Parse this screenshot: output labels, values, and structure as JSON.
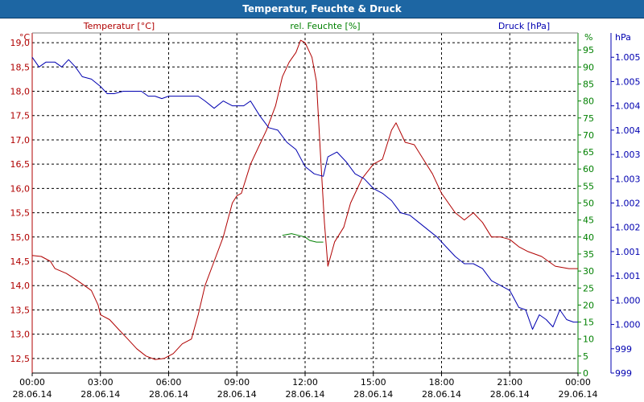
{
  "window": {
    "title": "Temperatur, Feuchte & Druck"
  },
  "colors": {
    "temperature": "#b00000",
    "humidity": "#008000",
    "pressure": "#0000b0",
    "grid": "#000000",
    "title_bar": "#1d66a3"
  },
  "chart_data": {
    "type": "line",
    "title": "Temperatur, Feuchte & Druck",
    "grid": true,
    "x": {
      "ticks": [
        {
          "hour": 0,
          "time": "00:00",
          "date": "28.06.14"
        },
        {
          "hour": 3,
          "time": "03:00",
          "date": "28.06.14"
        },
        {
          "hour": 6,
          "time": "06:00",
          "date": "28.06.14"
        },
        {
          "hour": 9,
          "time": "09:00",
          "date": "28.06.14"
        },
        {
          "hour": 12,
          "time": "12:00",
          "date": "28.06.14"
        },
        {
          "hour": 15,
          "time": "15:00",
          "date": "28.06.14"
        },
        {
          "hour": 18,
          "time": "18:00",
          "date": "28.06.14"
        },
        {
          "hour": 21,
          "time": "21:00",
          "date": "28.06.14"
        },
        {
          "hour": 24,
          "time": "00:00",
          "date": "29.06.14"
        }
      ],
      "range": [
        0,
        24
      ]
    },
    "axes": {
      "left": {
        "label": "Temperatur [°C]",
        "unit": "°C",
        "range": [
          12.2,
          19.2
        ],
        "ticks": [
          "19,0",
          "18,5",
          "18,0",
          "17,5",
          "17,0",
          "16,5",
          "16,0",
          "15,5",
          "15,0",
          "14,5",
          "14,0",
          "13,5",
          "13,0",
          "12,5"
        ],
        "tick_values": [
          19.0,
          18.5,
          18.0,
          17.5,
          17.0,
          16.5,
          16.0,
          15.5,
          15.0,
          14.5,
          14.0,
          13.5,
          13.0,
          12.5
        ]
      },
      "humidity": {
        "label": "rel. Feuchte [%]",
        "unit": "%",
        "range": [
          0,
          100
        ],
        "ticks": [
          "95",
          "90",
          "85",
          "80",
          "75",
          "70",
          "65",
          "60",
          "55",
          "50",
          "45",
          "40",
          "35",
          "30",
          "25",
          "20",
          "15",
          "10",
          "5",
          "0"
        ],
        "tick_values": [
          95,
          90,
          85,
          80,
          75,
          70,
          65,
          60,
          55,
          50,
          45,
          40,
          35,
          30,
          25,
          20,
          15,
          10,
          5,
          0
        ]
      },
      "right": {
        "label": "Druck [hPa]",
        "unit": "hPa",
        "range": [
          998.5,
          1005.5
        ],
        "ticks": [
          "1.005",
          "1.005",
          "1.004",
          "1.004",
          "1.003",
          "1.003",
          "1.002",
          "1.002",
          "1.001",
          "1.001",
          "1.000",
          "1.000",
          "999",
          "999"
        ],
        "tick_values": [
          1005.0,
          1004.5,
          1004.0,
          1003.5,
          1003.0,
          1002.5,
          1002.0,
          1001.5,
          1001.0,
          1000.5,
          1000.0,
          999.5,
          999.0,
          998.5
        ]
      }
    },
    "series": [
      {
        "name": "Temperatur",
        "axis": "left",
        "points": [
          [
            0,
            14.62
          ],
          [
            0.4,
            14.6
          ],
          [
            0.8,
            14.5
          ],
          [
            1.0,
            14.35
          ],
          [
            1.5,
            14.25
          ],
          [
            2.0,
            14.1
          ],
          [
            2.6,
            13.9
          ],
          [
            2.9,
            13.6
          ],
          [
            3.0,
            13.4
          ],
          [
            3.4,
            13.3
          ],
          [
            3.8,
            13.1
          ],
          [
            4.2,
            12.9
          ],
          [
            4.6,
            12.7
          ],
          [
            5.0,
            12.55
          ],
          [
            5.4,
            12.48
          ],
          [
            5.8,
            12.5
          ],
          [
            6.2,
            12.6
          ],
          [
            6.6,
            12.8
          ],
          [
            7.0,
            12.9
          ],
          [
            7.3,
            13.4
          ],
          [
            7.6,
            14.0
          ],
          [
            8.0,
            14.5
          ],
          [
            8.4,
            15.0
          ],
          [
            8.8,
            15.7
          ],
          [
            9.0,
            15.85
          ],
          [
            9.2,
            15.9
          ],
          [
            9.6,
            16.5
          ],
          [
            9.9,
            16.8
          ],
          [
            10.3,
            17.2
          ],
          [
            10.7,
            17.7
          ],
          [
            11.0,
            18.3
          ],
          [
            11.3,
            18.6
          ],
          [
            11.6,
            18.8
          ],
          [
            11.8,
            19.05
          ],
          [
            12.0,
            19.0
          ],
          [
            12.3,
            18.7
          ],
          [
            12.5,
            18.2
          ],
          [
            12.7,
            16.5
          ],
          [
            12.85,
            15.3
          ],
          [
            13.0,
            14.4
          ],
          [
            13.3,
            14.9
          ],
          [
            13.7,
            15.2
          ],
          [
            14.0,
            15.7
          ],
          [
            14.5,
            16.2
          ],
          [
            15.0,
            16.5
          ],
          [
            15.4,
            16.6
          ],
          [
            15.8,
            17.2
          ],
          [
            16.0,
            17.35
          ],
          [
            16.4,
            16.95
          ],
          [
            16.8,
            16.9
          ],
          [
            17.2,
            16.6
          ],
          [
            17.6,
            16.3
          ],
          [
            18.0,
            15.9
          ],
          [
            18.6,
            15.5
          ],
          [
            19.0,
            15.35
          ],
          [
            19.4,
            15.5
          ],
          [
            19.8,
            15.3
          ],
          [
            20.2,
            15.0
          ],
          [
            20.6,
            15.0
          ],
          [
            21.0,
            14.95
          ],
          [
            21.4,
            14.8
          ],
          [
            21.8,
            14.7
          ],
          [
            22.4,
            14.6
          ],
          [
            23.0,
            14.4
          ],
          [
            23.6,
            14.35
          ],
          [
            24.0,
            14.35
          ]
        ]
      },
      {
        "name": "rel. Feuchte",
        "axis": "humidity",
        "points": [
          [
            11.0,
            40.5
          ],
          [
            11.4,
            41
          ],
          [
            11.7,
            40.5
          ],
          [
            12.0,
            40
          ],
          [
            12.2,
            39
          ],
          [
            12.5,
            38.5
          ],
          [
            12.8,
            38.5
          ]
        ]
      },
      {
        "name": "Druck",
        "axis": "right",
        "points": [
          [
            0,
            1005.0
          ],
          [
            0.3,
            1004.8
          ],
          [
            0.6,
            1004.9
          ],
          [
            1.0,
            1004.9
          ],
          [
            1.3,
            1004.8
          ],
          [
            1.6,
            1004.95
          ],
          [
            1.9,
            1004.8
          ],
          [
            2.2,
            1004.6
          ],
          [
            2.6,
            1004.55
          ],
          [
            3.0,
            1004.4
          ],
          [
            3.3,
            1004.25
          ],
          [
            3.6,
            1004.25
          ],
          [
            4.0,
            1004.3
          ],
          [
            4.8,
            1004.3
          ],
          [
            5.1,
            1004.2
          ],
          [
            5.4,
            1004.2
          ],
          [
            5.7,
            1004.15
          ],
          [
            6.0,
            1004.2
          ],
          [
            6.6,
            1004.2
          ],
          [
            7.3,
            1004.2
          ],
          [
            7.6,
            1004.1
          ],
          [
            8.0,
            1003.95
          ],
          [
            8.4,
            1004.1
          ],
          [
            8.8,
            1004.0
          ],
          [
            9.3,
            1004.0
          ],
          [
            9.6,
            1004.1
          ],
          [
            10.0,
            1003.8
          ],
          [
            10.4,
            1003.55
          ],
          [
            10.8,
            1003.5
          ],
          [
            11.2,
            1003.25
          ],
          [
            11.6,
            1003.1
          ],
          [
            12.0,
            1002.75
          ],
          [
            12.4,
            1002.6
          ],
          [
            12.8,
            1002.55
          ],
          [
            13.0,
            1002.95
          ],
          [
            13.4,
            1003.05
          ],
          [
            13.8,
            1002.85
          ],
          [
            14.2,
            1002.6
          ],
          [
            14.6,
            1002.5
          ],
          [
            15.0,
            1002.3
          ],
          [
            15.4,
            1002.2
          ],
          [
            15.8,
            1002.05
          ],
          [
            16.2,
            1001.8
          ],
          [
            16.6,
            1001.75
          ],
          [
            17.0,
            1001.6
          ],
          [
            17.4,
            1001.45
          ],
          [
            17.8,
            1001.3
          ],
          [
            18.2,
            1001.1
          ],
          [
            18.6,
            1000.9
          ],
          [
            19.0,
            1000.75
          ],
          [
            19.4,
            1000.75
          ],
          [
            19.8,
            1000.65
          ],
          [
            20.2,
            1000.4
          ],
          [
            20.6,
            1000.3
          ],
          [
            21.0,
            1000.2
          ],
          [
            21.4,
            999.85
          ],
          [
            21.7,
            999.8
          ],
          [
            22.0,
            999.4
          ],
          [
            22.3,
            999.7
          ],
          [
            22.6,
            999.6
          ],
          [
            22.9,
            999.45
          ],
          [
            23.2,
            999.8
          ],
          [
            23.5,
            999.6
          ],
          [
            23.8,
            999.55
          ],
          [
            24.0,
            999.55
          ]
        ]
      }
    ]
  }
}
